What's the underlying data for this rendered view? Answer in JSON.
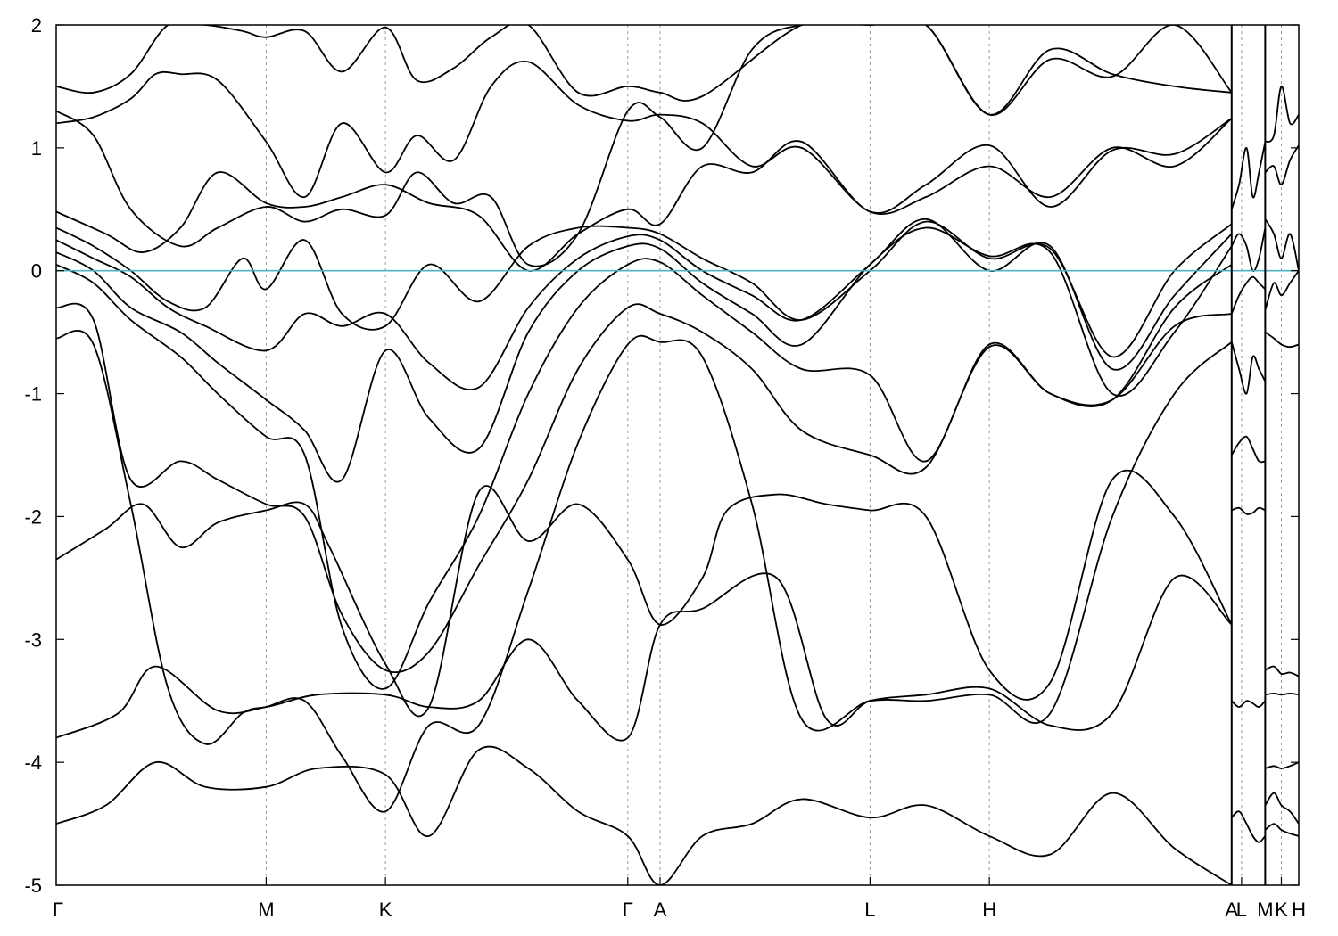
{
  "chart_data": {
    "type": "line",
    "title": "",
    "xlabel": "",
    "ylabel": "",
    "ylim": [
      -5,
      2
    ],
    "yticks": [
      -5,
      -4,
      -3,
      -2,
      -1,
      0,
      1,
      2
    ],
    "grid": "vertical dashed lines at high-symmetry points",
    "fermi_level": {
      "value": 0,
      "color": "#4fb3c8"
    },
    "kpoints": [
      {
        "label": "Γ",
        "pos": 0
      },
      {
        "label": "M",
        "pos": 0.169
      },
      {
        "label": "K",
        "pos": 0.265
      },
      {
        "label": "Γ",
        "pos": 0.46
      },
      {
        "label": "A",
        "pos": 0.486
      },
      {
        "label": "L",
        "pos": 0.655
      },
      {
        "label": "H",
        "pos": 0.751
      },
      {
        "label": "A",
        "pos": 0.946
      },
      {
        "label": "L",
        "pos": 0.954
      },
      {
        "label": "M",
        "pos": 0.973
      },
      {
        "label": "K",
        "pos": 0.986
      },
      {
        "label": "H",
        "pos": 1.0
      }
    ],
    "path_breaks": [
      0.946,
      0.973
    ],
    "series": [
      {
        "x": [
          0,
          0.04,
          0.08,
          0.12,
          0.169,
          0.21,
          0.265,
          0.3,
          0.34,
          0.38,
          0.42,
          0.46,
          0.486,
          0.52,
          0.56,
          0.6,
          0.655,
          0.7,
          0.751,
          0.8,
          0.85,
          0.9,
          0.946
        ],
        "y": [
          -4.5,
          -4.35,
          -4.0,
          -4.2,
          -4.2,
          -4.05,
          -4.1,
          -4.6,
          -3.9,
          -4.05,
          -4.4,
          -4.6,
          -5.0,
          -4.6,
          -4.5,
          -4.3,
          -4.45,
          -4.35,
          -4.6,
          -4.75,
          -4.25,
          -4.7,
          -5.0
        ]
      },
      {
        "x": [
          0,
          0.05,
          0.08,
          0.13,
          0.169,
          0.21,
          0.265,
          0.3,
          0.34,
          0.38,
          0.42,
          0.46,
          0.486,
          0.52,
          0.58,
          0.62,
          0.655,
          0.7,
          0.751,
          0.8,
          0.85,
          0.9,
          0.946
        ],
        "y": [
          -3.8,
          -3.6,
          -3.22,
          -3.58,
          -3.55,
          -3.45,
          -3.45,
          -3.55,
          -3.5,
          -3.0,
          -3.5,
          -3.8,
          -2.88,
          -2.75,
          -2.5,
          -3.65,
          -3.5,
          -3.45,
          -3.4,
          -3.7,
          -3.6,
          -2.5,
          -2.88
        ]
      },
      {
        "x": [
          0,
          0.04,
          0.07,
          0.1,
          0.13,
          0.169,
          0.2,
          0.22,
          0.265,
          0.3,
          0.34,
          0.38,
          0.42,
          0.46,
          0.486,
          0.52,
          0.54,
          0.58,
          0.62,
          0.655,
          0.7,
          0.751,
          0.8,
          0.85,
          0.9,
          0.946
        ],
        "y": [
          -2.35,
          -2.1,
          -1.9,
          -2.25,
          -2.05,
          -1.95,
          -1.9,
          -2.25,
          -3.2,
          -3.55,
          -1.8,
          -2.2,
          -1.9,
          -2.35,
          -2.88,
          -2.5,
          -1.95,
          -1.82,
          -1.9,
          -1.95,
          -2.0,
          -3.25,
          -3.35,
          -1.7,
          -2.0,
          -2.88
        ]
      },
      {
        "x": [
          0,
          0.03,
          0.06,
          0.09,
          0.12,
          0.15,
          0.169,
          0.2,
          0.23,
          0.265,
          0.3,
          0.34,
          0.38,
          0.42,
          0.46,
          0.486,
          0.52,
          0.56,
          0.6,
          0.655,
          0.7,
          0.751,
          0.8,
          0.85,
          0.9,
          0.946
        ],
        "y": [
          -0.55,
          -0.6,
          -1.9,
          -3.4,
          -3.85,
          -3.6,
          -3.55,
          -3.5,
          -3.95,
          -4.4,
          -3.7,
          -3.7,
          -2.6,
          -1.4,
          -0.6,
          -0.58,
          -0.7,
          -1.9,
          -3.65,
          -3.5,
          -3.5,
          -3.45,
          -3.6,
          -2.0,
          -1.0,
          -0.58
        ]
      },
      {
        "x": [
          0,
          0.03,
          0.06,
          0.1,
          0.13,
          0.169,
          0.2,
          0.23,
          0.265,
          0.3,
          0.34,
          0.38,
          0.42,
          0.46,
          0.486,
          0.52,
          0.56,
          0.6,
          0.655,
          0.7,
          0.751,
          0.8,
          0.85,
          0.9,
          0.946
        ],
        "y": [
          -0.3,
          -0.4,
          -1.7,
          -1.55,
          -1.7,
          -1.9,
          -2.0,
          -2.8,
          -3.25,
          -3.1,
          -2.4,
          -1.7,
          -0.8,
          -0.3,
          -0.35,
          -0.5,
          -0.8,
          -1.3,
          -1.5,
          -1.6,
          -0.62,
          -1.0,
          -1.05,
          -0.45,
          -0.35
        ]
      },
      {
        "x": [
          0,
          0.03,
          0.06,
          0.1,
          0.13,
          0.169,
          0.2,
          0.23,
          0.265,
          0.3,
          0.34,
          0.38,
          0.42,
          0.46,
          0.486,
          0.52,
          0.56,
          0.6,
          0.655,
          0.7,
          0.751,
          0.8,
          0.85,
          0.9,
          0.946
        ],
        "y": [
          0.05,
          -0.1,
          -0.4,
          -0.7,
          -1.0,
          -1.35,
          -1.5,
          -2.9,
          -3.4,
          -2.7,
          -2.0,
          -1.0,
          -0.3,
          0.05,
          0.07,
          -0.2,
          -0.5,
          -0.8,
          -0.85,
          -1.55,
          -0.6,
          -1.0,
          -1.05,
          -0.3,
          0.05
        ]
      },
      {
        "x": [
          0,
          0.03,
          0.06,
          0.1,
          0.13,
          0.169,
          0.2,
          0.23,
          0.265,
          0.3,
          0.34,
          0.38,
          0.42,
          0.46,
          0.486,
          0.52,
          0.56,
          0.6,
          0.655,
          0.7,
          0.751,
          0.8,
          0.85,
          0.9,
          0.946
        ],
        "y": [
          0.15,
          0.0,
          -0.3,
          -0.5,
          -0.75,
          -1.05,
          -1.3,
          -1.7,
          -0.65,
          -1.2,
          -1.45,
          -0.5,
          0.0,
          0.2,
          0.18,
          -0.1,
          -0.35,
          -0.6,
          0.05,
          0.35,
          0.12,
          0.15,
          -1.0,
          -0.5,
          0.2
        ]
      },
      {
        "x": [
          0,
          0.03,
          0.06,
          0.09,
          0.12,
          0.169,
          0.2,
          0.23,
          0.265,
          0.3,
          0.34,
          0.38,
          0.42,
          0.46,
          0.486,
          0.52,
          0.56,
          0.6,
          0.655,
          0.7,
          0.751,
          0.8,
          0.85,
          0.9,
          0.946
        ],
        "y": [
          0.25,
          0.1,
          -0.05,
          -0.3,
          -0.45,
          -0.65,
          -0.35,
          -0.45,
          -0.35,
          -0.75,
          -0.95,
          -0.3,
          0.1,
          0.28,
          0.25,
          0.0,
          -0.2,
          -0.4,
          0.05,
          0.42,
          0.0,
          0.2,
          -0.8,
          -0.2,
          0.3
        ]
      },
      {
        "x": [
          0,
          0.03,
          0.06,
          0.09,
          0.12,
          0.15,
          0.169,
          0.2,
          0.23,
          0.265,
          0.3,
          0.34,
          0.38,
          0.42,
          0.46,
          0.486,
          0.52,
          0.56,
          0.6,
          0.655,
          0.7,
          0.751,
          0.8,
          0.85,
          0.9,
          0.946
        ],
        "y": [
          0.35,
          0.2,
          0.0,
          -0.25,
          -0.3,
          0.1,
          -0.15,
          0.25,
          -0.35,
          -0.45,
          0.05,
          -0.25,
          0.2,
          0.35,
          0.35,
          0.3,
          0.1,
          -0.1,
          -0.4,
          0.0,
          0.4,
          0.1,
          0.18,
          -0.7,
          0.0,
          0.38
        ]
      },
      {
        "x": [
          0,
          0.04,
          0.07,
          0.1,
          0.13,
          0.169,
          0.2,
          0.23,
          0.265,
          0.3,
          0.34,
          0.38,
          0.42,
          0.46,
          0.486,
          0.52,
          0.56,
          0.6,
          0.655,
          0.7,
          0.751,
          0.8,
          0.85,
          0.9,
          0.946
        ],
        "y": [
          0.48,
          0.3,
          0.15,
          0.35,
          0.8,
          0.55,
          0.52,
          0.6,
          0.7,
          0.55,
          0.45,
          0.0,
          0.3,
          0.5,
          0.38,
          0.85,
          0.8,
          1.05,
          0.48,
          0.7,
          1.02,
          0.52,
          0.98,
          0.95,
          1.24
        ]
      },
      {
        "x": [
          0,
          0.03,
          0.06,
          0.08,
          0.1,
          0.13,
          0.169,
          0.2,
          0.23,
          0.265,
          0.29,
          0.32,
          0.35,
          0.38,
          0.42,
          0.46,
          0.486,
          0.52,
          0.56,
          0.6,
          0.655,
          0.7,
          0.751,
          0.8,
          0.85,
          0.9,
          0.946
        ],
        "y": [
          1.2,
          1.25,
          1.4,
          1.6,
          1.6,
          1.55,
          1.05,
          0.6,
          1.2,
          0.8,
          1.1,
          0.9,
          1.5,
          1.7,
          1.35,
          1.22,
          1.27,
          1.2,
          0.85,
          1.0,
          0.48,
          0.6,
          0.85,
          0.6,
          1.0,
          0.85,
          1.24
        ]
      },
      {
        "x": [
          0,
          0.03,
          0.06,
          0.1,
          0.13,
          0.169,
          0.2,
          0.23,
          0.265,
          0.29,
          0.32,
          0.35,
          0.38,
          0.42,
          0.46,
          0.486,
          0.52,
          0.56,
          0.6,
          0.655,
          0.7,
          0.751,
          0.8,
          0.85,
          0.9,
          0.946
        ],
        "y": [
          1.3,
          1.1,
          0.5,
          0.2,
          0.35,
          0.52,
          0.4,
          0.5,
          0.45,
          0.8,
          0.55,
          0.6,
          0.05,
          0.3,
          1.3,
          1.25,
          1.0,
          1.8,
          2.0,
          2.0,
          2.0,
          1.27,
          1.8,
          1.6,
          1.5,
          1.45
        ]
      },
      {
        "x": [
          0,
          0.03,
          0.06,
          0.09,
          0.12,
          0.15,
          0.169,
          0.2,
          0.23,
          0.265,
          0.29,
          0.32,
          0.35,
          0.38,
          0.42,
          0.46,
          0.486,
          0.52,
          0.6,
          0.655,
          0.7,
          0.751,
          0.8,
          0.85,
          0.9,
          0.946
        ],
        "y": [
          1.5,
          1.45,
          1.6,
          2.0,
          2.0,
          1.95,
          1.9,
          1.95,
          1.62,
          1.98,
          1.55,
          1.65,
          1.9,
          2.0,
          1.45,
          1.5,
          1.45,
          1.42,
          2.0,
          2.0,
          2.0,
          1.27,
          1.72,
          1.58,
          2.0,
          1.45
        ]
      },
      {
        "x": [
          0.946,
          0.952,
          0.958,
          0.963,
          0.968,
          0.973
        ],
        "y": [
          0.5,
          0.7,
          1.0,
          0.6,
          0.8,
          1.05
        ]
      },
      {
        "x": [
          0.946,
          0.952,
          0.958,
          0.963,
          0.968,
          0.973
        ],
        "y": [
          0.2,
          0.3,
          0.2,
          0.0,
          0.1,
          0.35
        ]
      },
      {
        "x": [
          0.946,
          0.952,
          0.958,
          0.963,
          0.968,
          0.973
        ],
        "y": [
          -0.35,
          -0.2,
          -0.1,
          -0.05,
          -0.1,
          -0.15
        ]
      },
      {
        "x": [
          0.946,
          0.952,
          0.958,
          0.963,
          0.968,
          0.973
        ],
        "y": [
          -0.58,
          -0.8,
          -1.0,
          -0.7,
          -0.8,
          -0.9
        ]
      },
      {
        "x": [
          0.946,
          0.952,
          0.958,
          0.963,
          0.968,
          0.973
        ],
        "y": [
          -1.5,
          -1.4,
          -1.35,
          -1.45,
          -1.55,
          -1.55
        ]
      },
      {
        "x": [
          0.946,
          0.952,
          0.958,
          0.963,
          0.968,
          0.973
        ],
        "y": [
          -1.95,
          -1.93,
          -1.98,
          -1.97,
          -1.93,
          -1.95
        ]
      },
      {
        "x": [
          0.946,
          0.952,
          0.958,
          0.963,
          0.968,
          0.973
        ],
        "y": [
          -3.5,
          -3.55,
          -3.5,
          -3.52,
          -3.55,
          -3.5
        ]
      },
      {
        "x": [
          0.946,
          0.952,
          0.958,
          0.963,
          0.968,
          0.973
        ],
        "y": [
          -4.45,
          -4.4,
          -4.5,
          -4.6,
          -4.65,
          -4.6
        ]
      },
      {
        "x": [
          0.973,
          0.98,
          0.986,
          0.993,
          1.0
        ],
        "y": [
          1.05,
          1.1,
          1.5,
          1.2,
          1.27
        ]
      },
      {
        "x": [
          0.973,
          0.98,
          0.986,
          0.993,
          1.0
        ],
        "y": [
          0.8,
          0.85,
          0.7,
          0.9,
          1.02
        ]
      },
      {
        "x": [
          0.973,
          0.98,
          0.986,
          0.993,
          1.0
        ],
        "y": [
          0.42,
          0.3,
          0.1,
          0.3,
          0.0
        ]
      },
      {
        "x": [
          0.973,
          0.98,
          0.986,
          0.993,
          1.0
        ],
        "y": [
          -0.32,
          -0.1,
          -0.2,
          -0.1,
          0.0
        ]
      },
      {
        "x": [
          0.973,
          0.98,
          0.986,
          0.993,
          1.0
        ],
        "y": [
          -0.5,
          -0.55,
          -0.6,
          -0.62,
          -0.6
        ]
      },
      {
        "x": [
          0.973,
          0.98,
          0.986,
          0.993,
          1.0
        ],
        "y": [
          -3.25,
          -3.22,
          -3.28,
          -3.27,
          -3.3
        ]
      },
      {
        "x": [
          0.973,
          0.98,
          0.986,
          0.993,
          1.0
        ],
        "y": [
          -3.45,
          -3.44,
          -3.45,
          -3.44,
          -3.45
        ]
      },
      {
        "x": [
          0.973,
          0.98,
          0.986,
          0.993,
          1.0
        ],
        "y": [
          -4.05,
          -4.03,
          -4.05,
          -4.03,
          -4.0
        ]
      },
      {
        "x": [
          0.973,
          0.98,
          0.986,
          0.993,
          1.0
        ],
        "y": [
          -4.35,
          -4.25,
          -4.35,
          -4.4,
          -4.5
        ]
      },
      {
        "x": [
          0.973,
          0.98,
          0.986,
          0.993,
          1.0
        ],
        "y": [
          -4.55,
          -4.5,
          -4.55,
          -4.58,
          -4.6
        ]
      }
    ]
  }
}
